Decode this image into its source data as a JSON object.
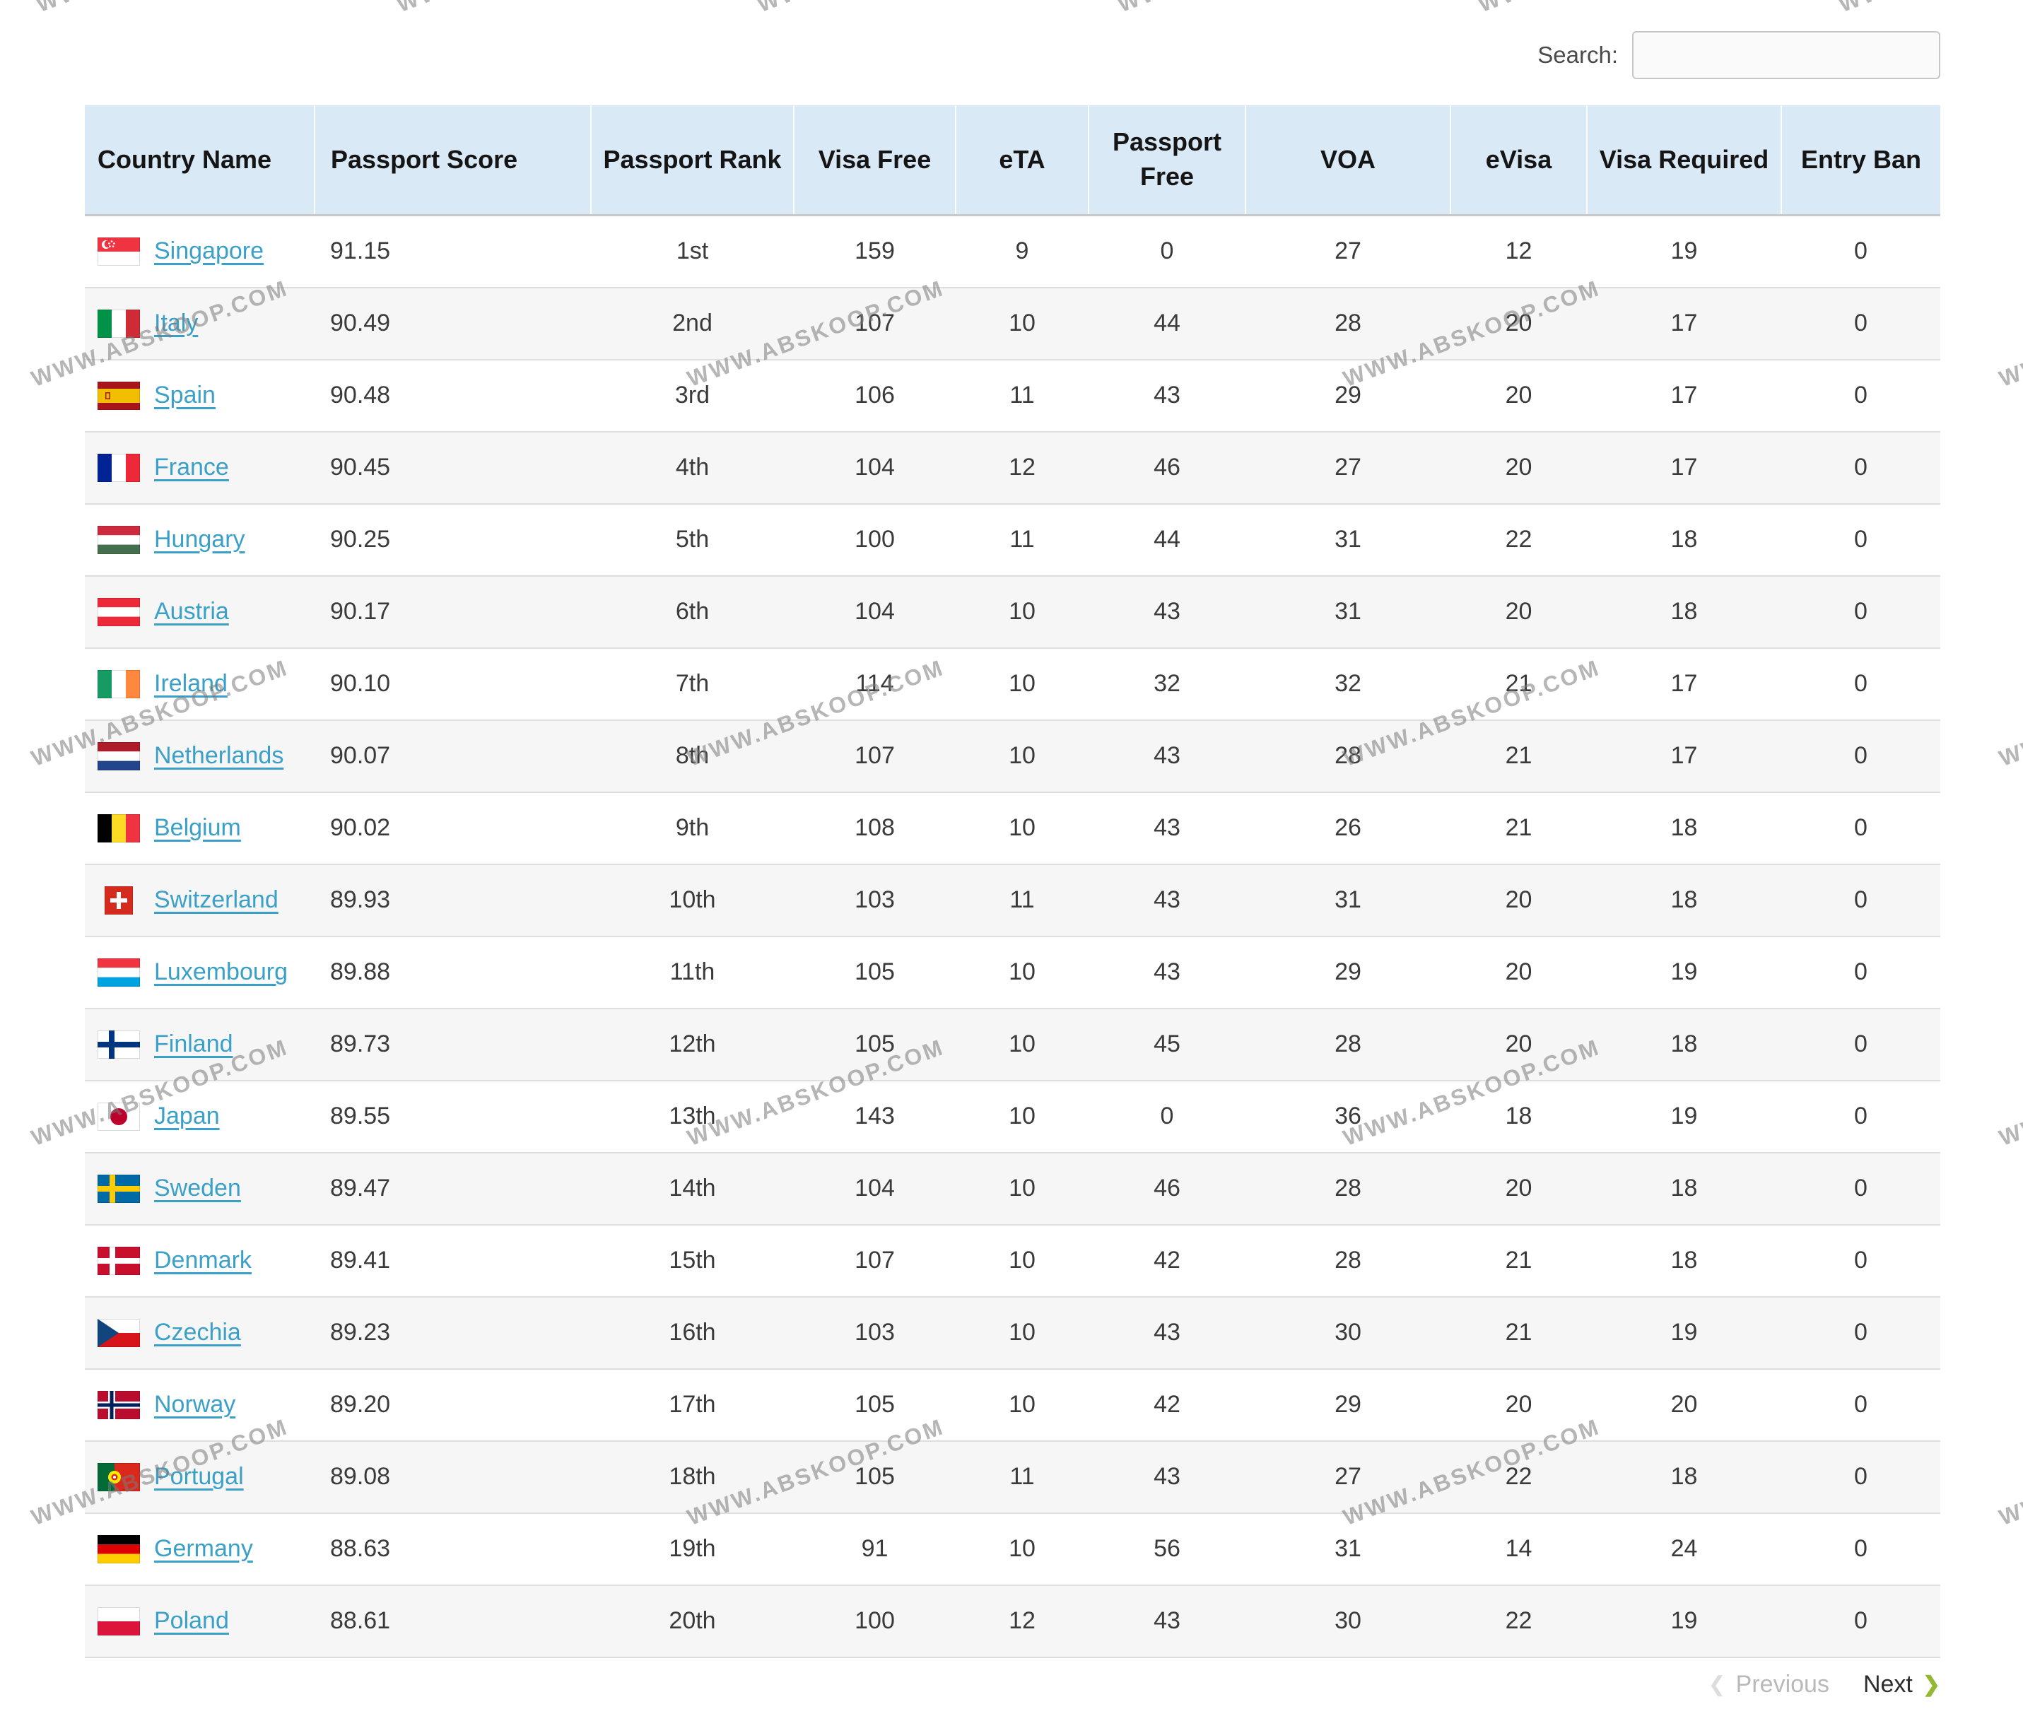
{
  "watermark": {
    "text": "WWW.ABSKOOP.COM"
  },
  "search": {
    "label": "Search:",
    "value": "",
    "placeholder": ""
  },
  "table": {
    "columns": [
      {
        "label": "Country Name"
      },
      {
        "label": "Passport Score"
      },
      {
        "label": "Passport Rank"
      },
      {
        "label": "Visa Free"
      },
      {
        "label": "eTA"
      },
      {
        "label": "Passport Free"
      },
      {
        "label": "VOA"
      },
      {
        "label": "eVisa"
      },
      {
        "label": "Visa Required"
      },
      {
        "label": "Entry Ban"
      }
    ],
    "rows": [
      {
        "flag": "sg",
        "country": "Singapore",
        "score": "91.15",
        "rank": "1st",
        "visa_free": "159",
        "eta": "9",
        "passport_free": "0",
        "voa": "27",
        "evisa": "12",
        "visa_required": "19",
        "entry_ban": "0"
      },
      {
        "flag": "it",
        "country": "Italy",
        "score": "90.49",
        "rank": "2nd",
        "visa_free": "107",
        "eta": "10",
        "passport_free": "44",
        "voa": "28",
        "evisa": "20",
        "visa_required": "17",
        "entry_ban": "0"
      },
      {
        "flag": "es",
        "country": "Spain",
        "score": "90.48",
        "rank": "3rd",
        "visa_free": "106",
        "eta": "11",
        "passport_free": "43",
        "voa": "29",
        "evisa": "20",
        "visa_required": "17",
        "entry_ban": "0"
      },
      {
        "flag": "fr",
        "country": "France",
        "score": "90.45",
        "rank": "4th",
        "visa_free": "104",
        "eta": "12",
        "passport_free": "46",
        "voa": "27",
        "evisa": "20",
        "visa_required": "17",
        "entry_ban": "0"
      },
      {
        "flag": "hu",
        "country": "Hungary",
        "score": "90.25",
        "rank": "5th",
        "visa_free": "100",
        "eta": "11",
        "passport_free": "44",
        "voa": "31",
        "evisa": "22",
        "visa_required": "18",
        "entry_ban": "0"
      },
      {
        "flag": "at",
        "country": "Austria",
        "score": "90.17",
        "rank": "6th",
        "visa_free": "104",
        "eta": "10",
        "passport_free": "43",
        "voa": "31",
        "evisa": "20",
        "visa_required": "18",
        "entry_ban": "0"
      },
      {
        "flag": "ie",
        "country": "Ireland",
        "score": "90.10",
        "rank": "7th",
        "visa_free": "114",
        "eta": "10",
        "passport_free": "32",
        "voa": "32",
        "evisa": "21",
        "visa_required": "17",
        "entry_ban": "0"
      },
      {
        "flag": "nl",
        "country": "Netherlands",
        "score": "90.07",
        "rank": "8th",
        "visa_free": "107",
        "eta": "10",
        "passport_free": "43",
        "voa": "28",
        "evisa": "21",
        "visa_required": "17",
        "entry_ban": "0"
      },
      {
        "flag": "be",
        "country": "Belgium",
        "score": "90.02",
        "rank": "9th",
        "visa_free": "108",
        "eta": "10",
        "passport_free": "43",
        "voa": "26",
        "evisa": "21",
        "visa_required": "18",
        "entry_ban": "0"
      },
      {
        "flag": "ch",
        "country": "Switzerland",
        "score": "89.93",
        "rank": "10th",
        "visa_free": "103",
        "eta": "11",
        "passport_free": "43",
        "voa": "31",
        "evisa": "20",
        "visa_required": "18",
        "entry_ban": "0"
      },
      {
        "flag": "lu",
        "country": "Luxembourg",
        "score": "89.88",
        "rank": "11th",
        "visa_free": "105",
        "eta": "10",
        "passport_free": "43",
        "voa": "29",
        "evisa": "20",
        "visa_required": "19",
        "entry_ban": "0"
      },
      {
        "flag": "fi",
        "country": "Finland",
        "score": "89.73",
        "rank": "12th",
        "visa_free": "105",
        "eta": "10",
        "passport_free": "45",
        "voa": "28",
        "evisa": "20",
        "visa_required": "18",
        "entry_ban": "0"
      },
      {
        "flag": "jp",
        "country": "Japan",
        "score": "89.55",
        "rank": "13th",
        "visa_free": "143",
        "eta": "10",
        "passport_free": "0",
        "voa": "36",
        "evisa": "18",
        "visa_required": "19",
        "entry_ban": "0"
      },
      {
        "flag": "se",
        "country": "Sweden",
        "score": "89.47",
        "rank": "14th",
        "visa_free": "104",
        "eta": "10",
        "passport_free": "46",
        "voa": "28",
        "evisa": "20",
        "visa_required": "18",
        "entry_ban": "0"
      },
      {
        "flag": "dk",
        "country": "Denmark",
        "score": "89.41",
        "rank": "15th",
        "visa_free": "107",
        "eta": "10",
        "passport_free": "42",
        "voa": "28",
        "evisa": "21",
        "visa_required": "18",
        "entry_ban": "0"
      },
      {
        "flag": "cz",
        "country": "Czechia",
        "score": "89.23",
        "rank": "16th",
        "visa_free": "103",
        "eta": "10",
        "passport_free": "43",
        "voa": "30",
        "evisa": "21",
        "visa_required": "19",
        "entry_ban": "0"
      },
      {
        "flag": "no",
        "country": "Norway",
        "score": "89.20",
        "rank": "17th",
        "visa_free": "105",
        "eta": "10",
        "passport_free": "42",
        "voa": "29",
        "evisa": "20",
        "visa_required": "20",
        "entry_ban": "0"
      },
      {
        "flag": "pt",
        "country": "Portugal",
        "score": "89.08",
        "rank": "18th",
        "visa_free": "105",
        "eta": "11",
        "passport_free": "43",
        "voa": "27",
        "evisa": "22",
        "visa_required": "18",
        "entry_ban": "0"
      },
      {
        "flag": "de",
        "country": "Germany",
        "score": "88.63",
        "rank": "19th",
        "visa_free": "91",
        "eta": "10",
        "passport_free": "56",
        "voa": "31",
        "evisa": "14",
        "visa_required": "24",
        "entry_ban": "0"
      },
      {
        "flag": "pl",
        "country": "Poland",
        "score": "88.61",
        "rank": "20th",
        "visa_free": "100",
        "eta": "12",
        "passport_free": "43",
        "voa": "30",
        "evisa": "22",
        "visa_required": "19",
        "entry_ban": "0"
      }
    ]
  },
  "pagination": {
    "previous_label": "Previous",
    "next_label": "Next"
  },
  "colors": {
    "header_bg": "#d9e9f6",
    "link": "#3aa0c8",
    "row_alt": "#f6f6f6",
    "next_chevron": "#94b834",
    "watermark_gray": "#7a7a7a"
  }
}
